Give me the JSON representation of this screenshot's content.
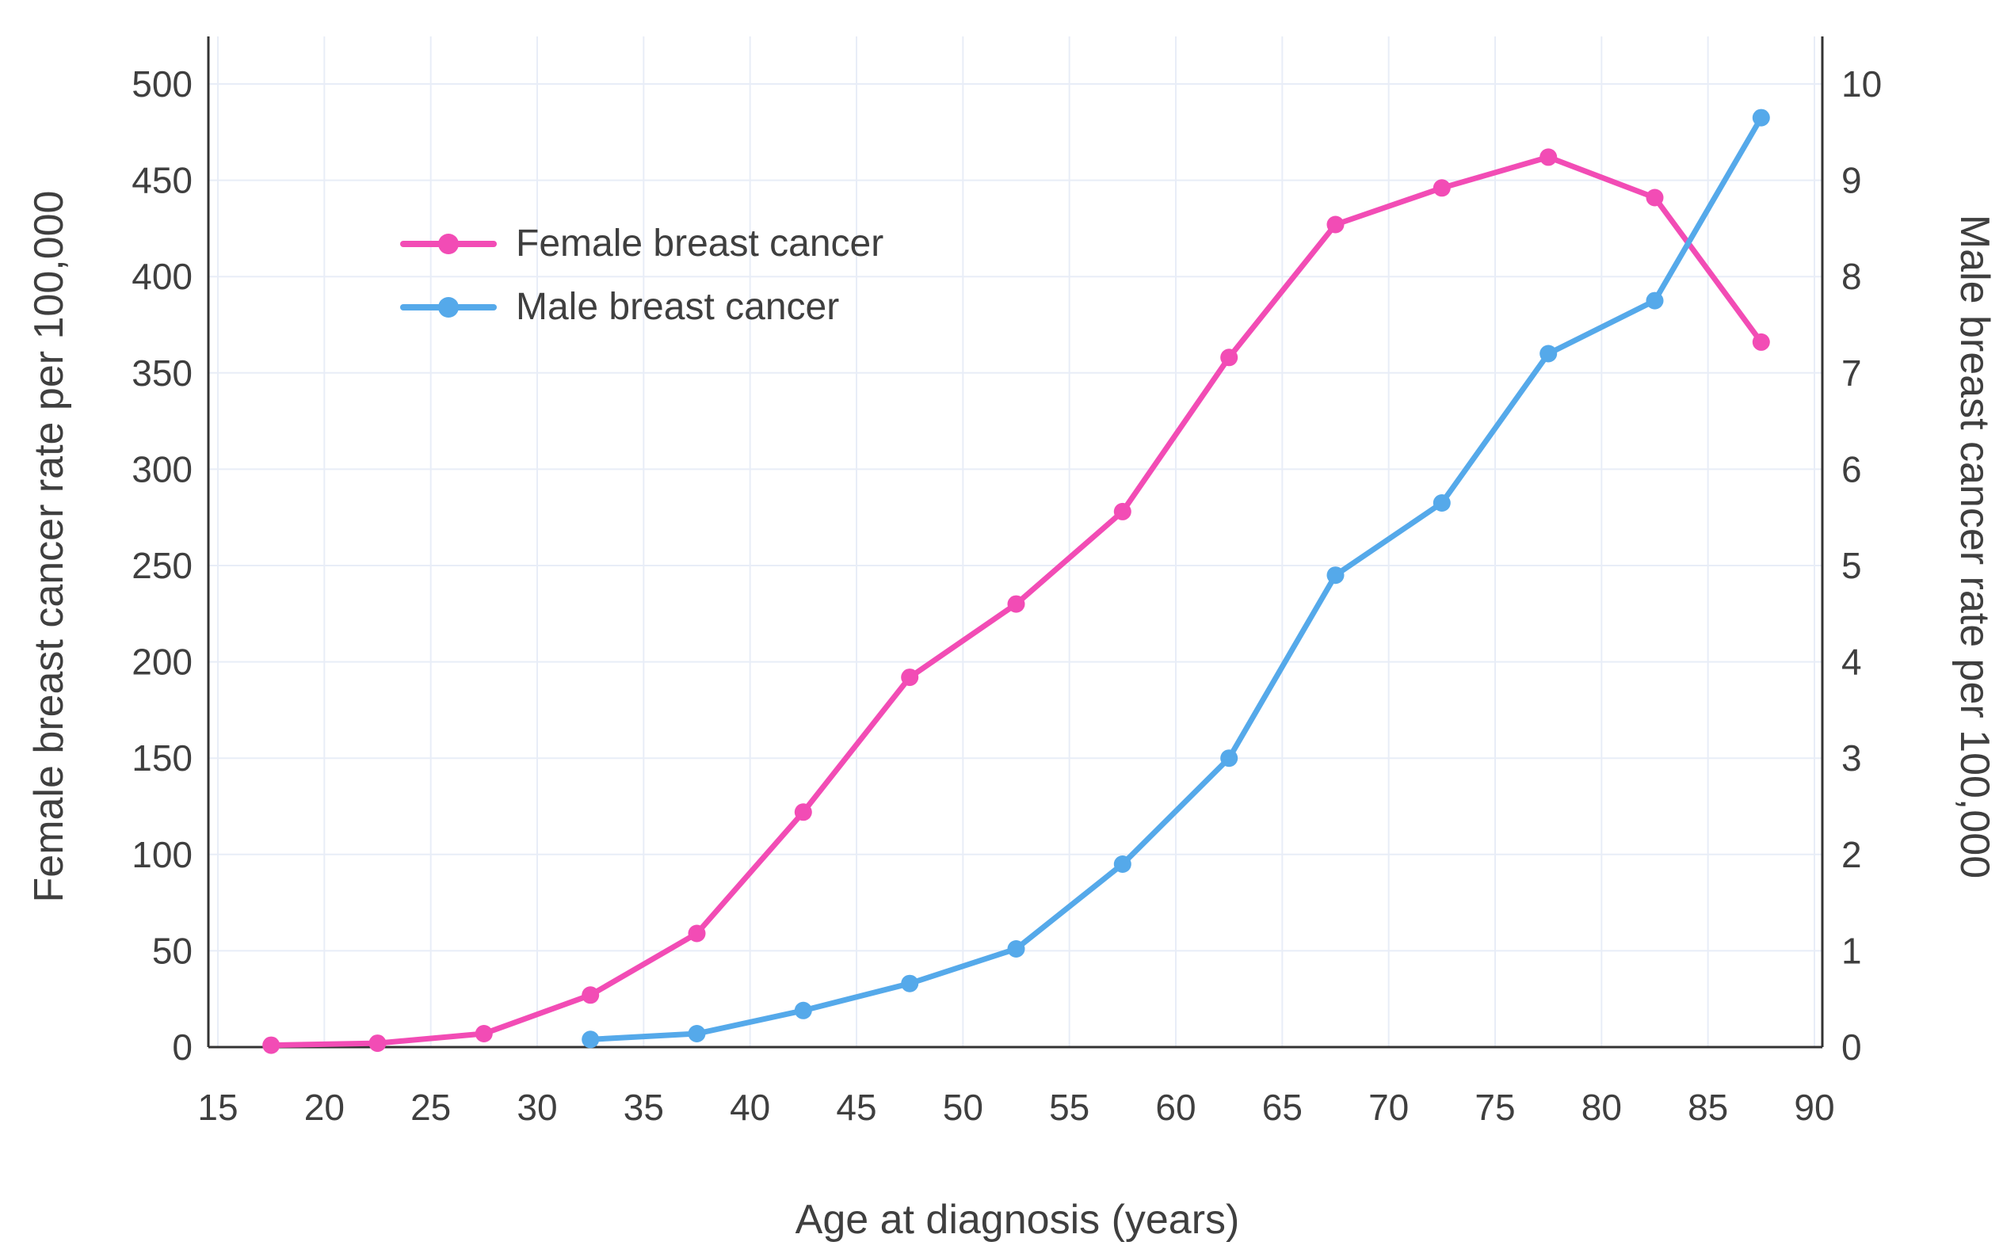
{
  "figure": {
    "background": "#ffffff"
  },
  "chart_data": {
    "type": "line",
    "title": "",
    "xlabel": "Age at diagnosis (years)",
    "ylabel_left": "Female breast cancer rate per 100,000",
    "ylabel_right": "Male breast cancer rate per 100,000",
    "x_ticks": [
      15,
      20,
      25,
      30,
      35,
      40,
      45,
      50,
      55,
      60,
      65,
      70,
      75,
      80,
      85,
      90
    ],
    "y_left_ticks": [
      0,
      50,
      100,
      150,
      200,
      250,
      300,
      350,
      400,
      450,
      500
    ],
    "y_right_ticks": [
      0,
      1,
      2,
      3,
      4,
      5,
      6,
      7,
      8,
      9,
      10
    ],
    "xlim": [
      14.5,
      90.5
    ],
    "ylim_left": [
      0,
      510
    ],
    "ylim_right": [
      0,
      10.2
    ],
    "grid": true,
    "legend_position": "inside-upper-left",
    "colors": {
      "grid": "#e8edf7",
      "axis": "#333333",
      "text": "#3f3f3f"
    },
    "series": [
      {
        "name": "Female breast cancer",
        "axis": "left",
        "color": "#f24cb5",
        "x": [
          17.5,
          22.5,
          27.5,
          32.5,
          37.5,
          42.5,
          47.5,
          52.5,
          57.5,
          62.5,
          67.5,
          72.5,
          77.5,
          82.5,
          87.5
        ],
        "y": [
          1,
          2,
          7,
          27,
          59,
          122,
          192,
          230,
          278,
          358,
          427,
          446,
          462,
          441,
          366
        ]
      },
      {
        "name": "Male breast cancer",
        "axis": "right",
        "color": "#55a9ea",
        "x": [
          32.5,
          37.5,
          42.5,
          47.5,
          52.5,
          57.5,
          62.5,
          67.5,
          72.5,
          77.5,
          82.5,
          87.5
        ],
        "y": [
          0.08,
          0.14,
          0.38,
          0.66,
          1.02,
          1.9,
          3.0,
          4.9,
          5.65,
          7.2,
          7.75,
          9.65
        ]
      }
    ]
  }
}
